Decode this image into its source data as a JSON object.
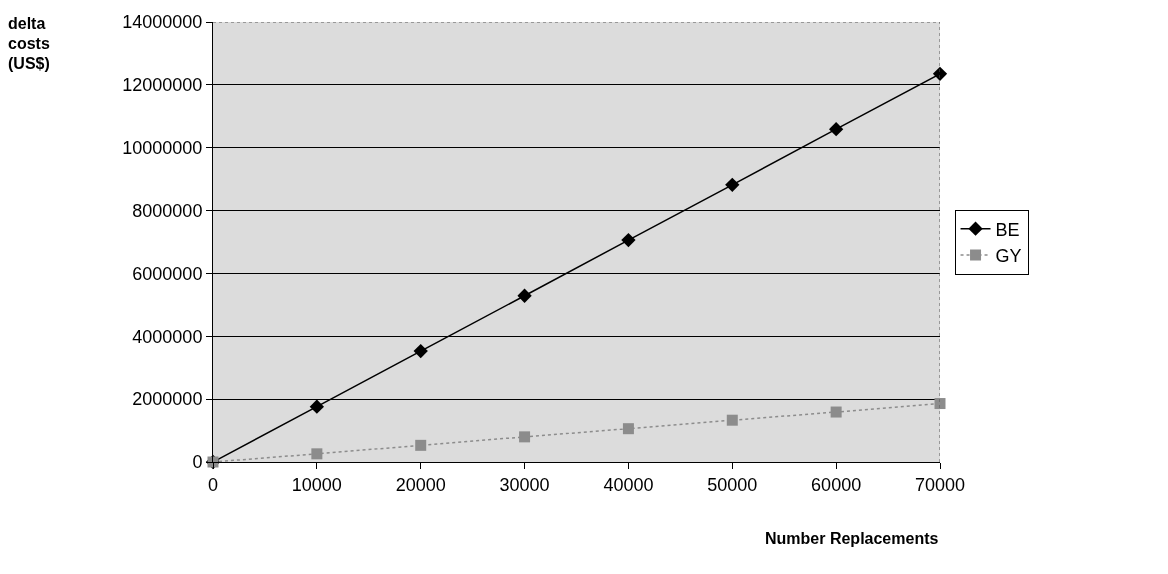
{
  "chart_data": {
    "type": "line",
    "xlabel": "Number Replacements",
    "ylabel": "delta costs (US$)",
    "x": [
      0,
      10000,
      20000,
      30000,
      40000,
      50000,
      60000,
      70000
    ],
    "series": [
      {
        "name": "BE",
        "color": "#000000",
        "marker": "diamond",
        "line_style": "solid",
        "values": [
          0,
          1760000,
          3530000,
          5290000,
          7060000,
          8820000,
          10590000,
          12350000
        ]
      },
      {
        "name": "GY",
        "color": "#8c8c8c",
        "marker": "square",
        "line_style": "dotted",
        "values": [
          0,
          260000,
          530000,
          800000,
          1060000,
          1330000,
          1590000,
          1860000
        ]
      }
    ],
    "xlim": [
      0,
      70000
    ],
    "xticks": [
      0,
      10000,
      20000,
      30000,
      40000,
      50000,
      60000,
      70000
    ],
    "ylim": [
      0,
      14000000
    ],
    "yticks": [
      0,
      2000000,
      4000000,
      6000000,
      8000000,
      10000000,
      12000000,
      14000000
    ],
    "grid": "y",
    "legend": "right"
  }
}
